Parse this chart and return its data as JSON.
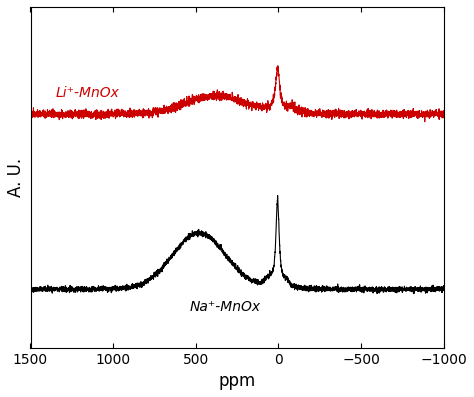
{
  "title": "",
  "xlabel": "ppm",
  "ylabel": "A. U.",
  "xlim": [
    1500,
    -1000
  ],
  "red_label": "Li⁺-MnOx",
  "black_label": "Na⁺-MnOx",
  "red_color": "#cc0000",
  "black_color": "#000000",
  "xticks": [
    1500,
    1000,
    500,
    0,
    -500,
    -1000
  ],
  "xlabel_fontsize": 12,
  "ylabel_fontsize": 12,
  "label_fontsize": 10,
  "red_baseline": 0.72,
  "black_baseline": 0.18,
  "noise_amplitude_black": 0.018,
  "noise_amplitude_red": 0.018,
  "seed": 42
}
